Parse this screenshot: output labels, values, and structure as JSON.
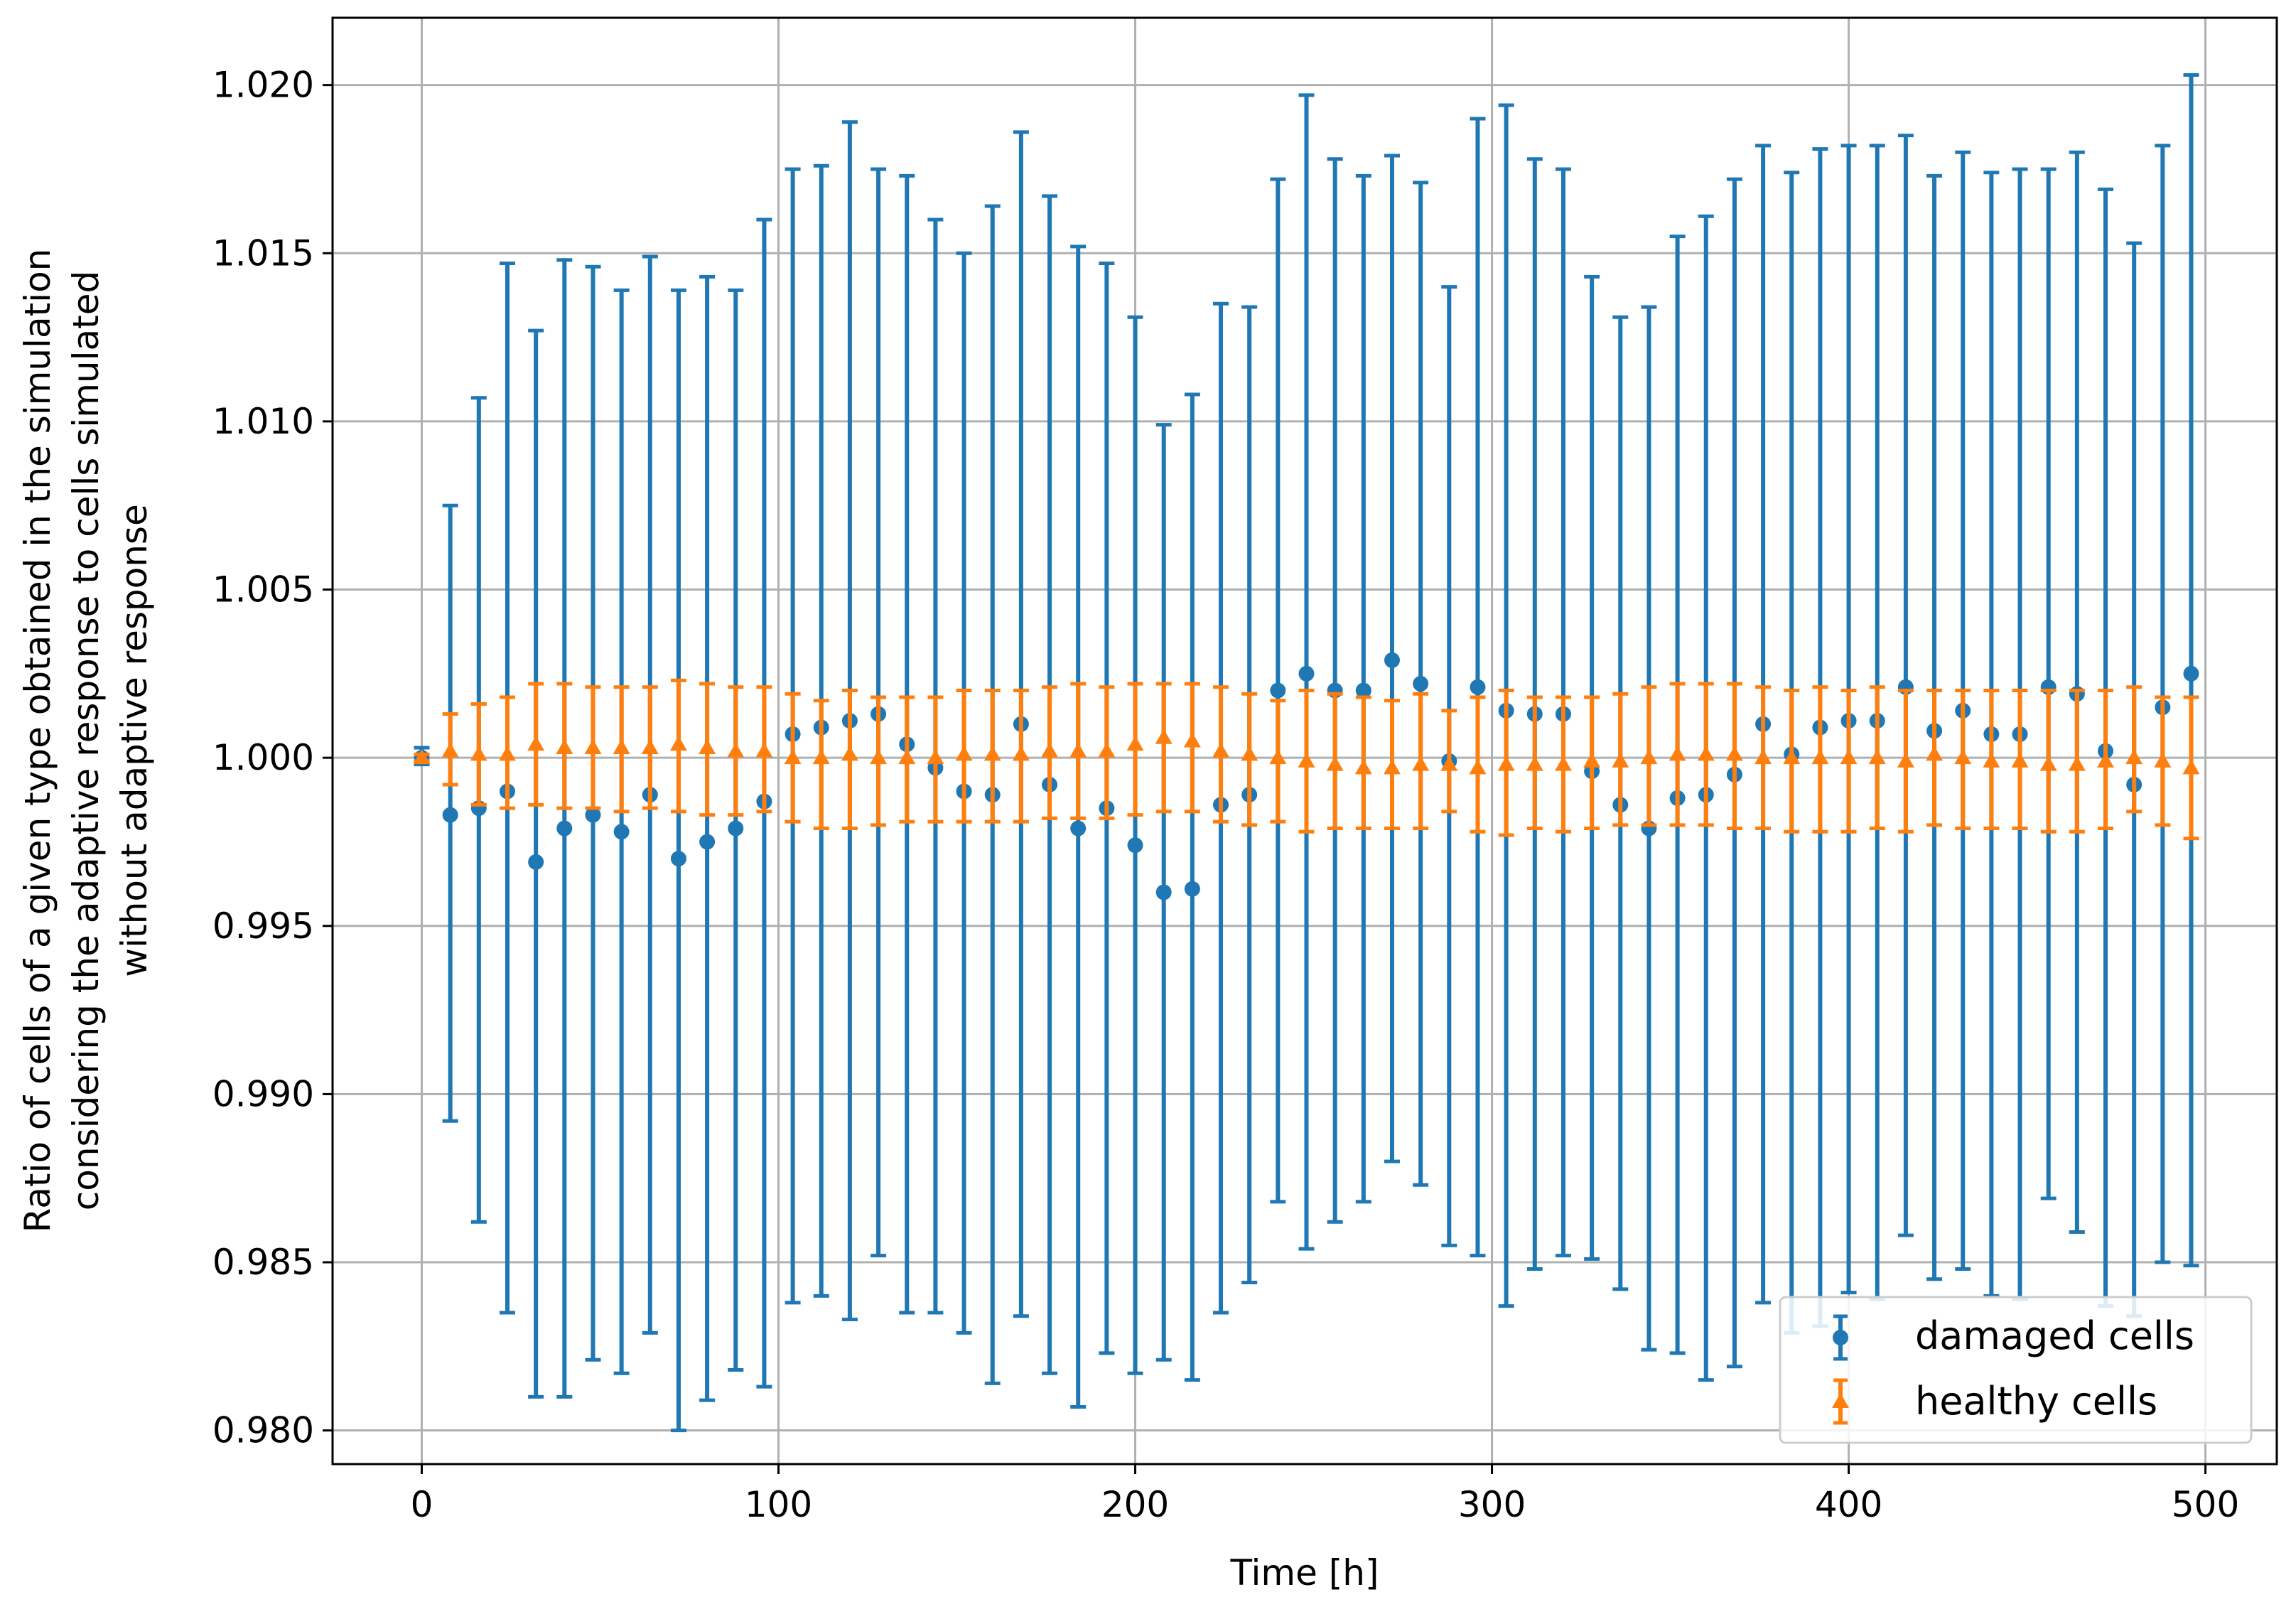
{
  "chart_data": {
    "type": "scatter",
    "title": "",
    "xlabel": "Time [h]",
    "ylabel_lines": [
      "Ratio of cells of a given type obtained in the simulation",
      "considering the adaptive response to cells simulated",
      "without adaptive response"
    ],
    "xlim": [
      -25,
      520
    ],
    "ylim": [
      0.979,
      1.022
    ],
    "xticks": [
      0,
      100,
      200,
      300,
      400,
      500
    ],
    "xtick_labels": [
      "0",
      "100",
      "200",
      "300",
      "400",
      "500"
    ],
    "yticks": [
      0.98,
      0.985,
      0.99,
      0.995,
      1.0,
      1.005,
      1.01,
      1.015,
      1.02
    ],
    "ytick_labels": [
      "0.980",
      "0.985",
      "0.990",
      "0.995",
      "1.000",
      "1.005",
      "1.010",
      "1.015",
      "1.020"
    ],
    "grid": true,
    "legend_position": "bottom-right",
    "series": [
      {
        "name": "damaged cells",
        "color": "#1f77b4",
        "marker": "circle",
        "x": [
          0,
          8,
          16,
          24,
          32,
          40,
          48,
          56,
          64,
          72,
          80,
          88,
          96,
          104,
          112,
          120,
          128,
          136,
          144,
          152,
          160,
          168,
          176,
          184,
          192,
          200,
          208,
          216,
          224,
          232,
          240,
          248,
          256,
          264,
          272,
          280,
          288,
          296,
          304,
          312,
          320,
          328,
          336,
          344,
          352,
          360,
          368,
          376,
          384,
          392,
          400,
          408,
          416,
          424,
          432,
          440,
          448,
          456,
          464,
          472,
          480,
          488,
          496
        ],
        "y": [
          1.0,
          0.9983,
          0.9985,
          0.999,
          0.9969,
          0.9979,
          0.9983,
          0.9978,
          0.9989,
          0.997,
          0.9975,
          0.9979,
          0.9987,
          1.0007,
          1.0009,
          1.0011,
          1.0013,
          1.0004,
          0.9997,
          0.999,
          0.9989,
          1.001,
          0.9992,
          0.9979,
          0.9985,
          0.9974,
          0.996,
          0.9961,
          0.9986,
          0.9989,
          1.002,
          1.0025,
          1.002,
          1.002,
          1.0029,
          1.0022,
          0.9999,
          1.0021,
          1.0014,
          1.0013,
          1.0013,
          0.9996,
          0.9986,
          0.9979,
          0.9988,
          0.9989,
          0.9995,
          1.001,
          1.0001,
          1.0009,
          1.0011,
          1.0011,
          1.0021,
          1.0008,
          1.0014,
          1.0007,
          1.0007,
          1.0021,
          1.0019,
          1.0002,
          0.9992,
          1.0015,
          1.0025
        ],
        "err_low": [
          0.9998,
          0.9892,
          0.9862,
          0.9835,
          0.981,
          0.981,
          0.9821,
          0.9817,
          0.9829,
          0.98,
          0.9809,
          0.9818,
          0.9813,
          0.9838,
          0.984,
          0.9833,
          0.9852,
          0.9835,
          0.9835,
          0.9829,
          0.9814,
          0.9834,
          0.9817,
          0.9807,
          0.9823,
          0.9817,
          0.9821,
          0.9815,
          0.9835,
          0.9844,
          0.9868,
          0.9854,
          0.9862,
          0.9868,
          0.988,
          0.9873,
          0.9855,
          0.9852,
          0.9837,
          0.9848,
          0.9852,
          0.9851,
          0.9842,
          0.9824,
          0.9823,
          0.9815,
          0.9819,
          0.9838,
          0.9829,
          0.9831,
          0.9841,
          0.9839,
          0.9858,
          0.9845,
          0.9848,
          0.984,
          0.9839,
          0.9869,
          0.9859,
          0.9837,
          0.9834,
          0.985,
          0.9849
        ],
        "err_high": [
          1.0003,
          1.0075,
          1.0107,
          1.0147,
          1.0127,
          1.0148,
          1.0146,
          1.0139,
          1.0149,
          1.0139,
          1.0143,
          1.0139,
          1.016,
          1.0175,
          1.0176,
          1.0189,
          1.0175,
          1.0173,
          1.016,
          1.015,
          1.0164,
          1.0186,
          1.0167,
          1.0152,
          1.0147,
          1.0131,
          1.0099,
          1.0108,
          1.0135,
          1.0134,
          1.0172,
          1.0197,
          1.0178,
          1.0173,
          1.0179,
          1.0171,
          1.014,
          1.019,
          1.0194,
          1.0178,
          1.0175,
          1.0143,
          1.0131,
          1.0134,
          1.0155,
          1.0161,
          1.0172,
          1.0182,
          1.0174,
          1.0181,
          1.0182,
          1.0182,
          1.0185,
          1.0173,
          1.018,
          1.0174,
          1.0175,
          1.0175,
          1.018,
          1.0169,
          1.0153,
          1.0182,
          1.0203
        ]
      },
      {
        "name": "healthy cells",
        "color": "#ff7f0e",
        "marker": "triangle",
        "x": [
          0,
          8,
          16,
          24,
          32,
          40,
          48,
          56,
          64,
          72,
          80,
          88,
          96,
          104,
          112,
          120,
          128,
          136,
          144,
          152,
          160,
          168,
          176,
          184,
          192,
          200,
          208,
          216,
          224,
          232,
          240,
          248,
          256,
          264,
          272,
          280,
          288,
          296,
          304,
          312,
          320,
          328,
          336,
          344,
          352,
          360,
          368,
          376,
          384,
          392,
          400,
          408,
          416,
          424,
          432,
          440,
          448,
          456,
          464,
          472,
          480,
          488,
          496
        ],
        "y": [
          1.0,
          1.0002,
          1.0001,
          1.0001,
          1.0004,
          1.0003,
          1.0003,
          1.0003,
          1.0003,
          1.0004,
          1.0003,
          1.0002,
          1.0002,
          1.0,
          1.0,
          1.0001,
          1.0,
          1.0,
          1.0,
          1.0001,
          1.0001,
          1.0001,
          1.0002,
          1.0002,
          1.0002,
          1.0004,
          1.0006,
          1.0005,
          1.0002,
          1.0001,
          1.0,
          0.9999,
          0.9998,
          0.9997,
          0.9997,
          0.9998,
          0.9998,
          0.9997,
          0.9998,
          0.9998,
          0.9998,
          0.9999,
          0.9999,
          1.0,
          1.0001,
          1.0001,
          1.0001,
          1.0,
          1.0,
          1.0,
          1.0,
          1.0,
          0.9999,
          1.0001,
          1.0,
          0.9999,
          0.9999,
          0.9998,
          0.9998,
          0.9999,
          1.0,
          0.9999,
          0.9997
        ],
        "err_low": [
          0.9999,
          0.9992,
          0.9986,
          0.9985,
          0.9986,
          0.9985,
          0.9985,
          0.9984,
          0.9985,
          0.9984,
          0.9983,
          0.9983,
          0.9984,
          0.9981,
          0.9979,
          0.9979,
          0.998,
          0.9981,
          0.9981,
          0.9981,
          0.9981,
          0.9981,
          0.9982,
          0.9982,
          0.9982,
          0.9983,
          0.9984,
          0.9984,
          0.9981,
          0.998,
          0.9981,
          0.9978,
          0.9979,
          0.9979,
          0.9979,
          0.9979,
          0.9984,
          0.9978,
          0.9977,
          0.9979,
          0.9978,
          0.9979,
          0.998,
          0.998,
          0.998,
          0.998,
          0.9979,
          0.9979,
          0.9978,
          0.9978,
          0.9978,
          0.9979,
          0.9978,
          0.998,
          0.9979,
          0.9979,
          0.9979,
          0.9978,
          0.9978,
          0.9979,
          0.9984,
          0.998,
          0.9976
        ],
        "err_high": [
          1.0001,
          1.0013,
          1.0016,
          1.0018,
          1.0022,
          1.0022,
          1.0021,
          1.0021,
          1.0021,
          1.0023,
          1.0022,
          1.0021,
          1.0021,
          1.0019,
          1.0017,
          1.002,
          1.0018,
          1.0018,
          1.0018,
          1.002,
          1.002,
          1.002,
          1.0021,
          1.0022,
          1.0021,
          1.0022,
          1.0022,
          1.0022,
          1.0021,
          1.0019,
          1.0017,
          1.002,
          1.0019,
          1.0018,
          1.0017,
          1.0019,
          1.0014,
          1.0018,
          1.002,
          1.0018,
          1.0018,
          1.0018,
          1.0019,
          1.0021,
          1.0022,
          1.0022,
          1.0022,
          1.0021,
          1.002,
          1.0021,
          1.002,
          1.0021,
          1.002,
          1.002,
          1.002,
          1.002,
          1.002,
          1.002,
          1.002,
          1.002,
          1.0021,
          1.0018,
          1.0018
        ]
      }
    ]
  }
}
